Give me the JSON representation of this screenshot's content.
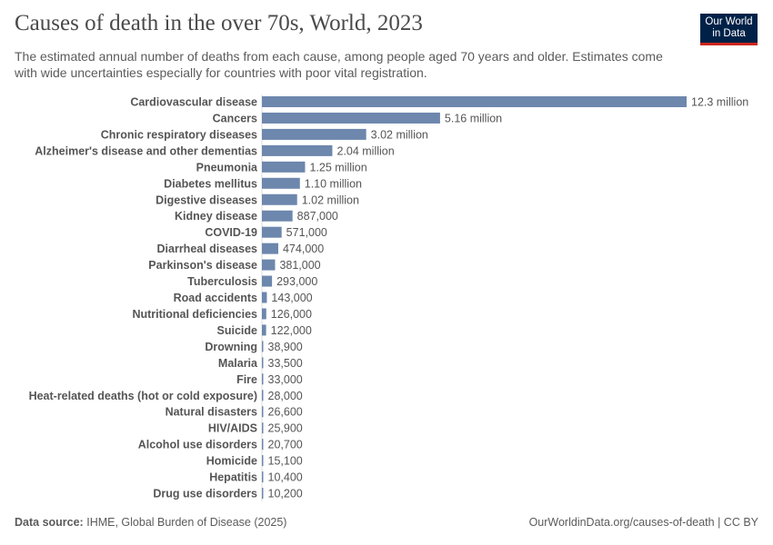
{
  "header": {
    "title": "Causes of death in the over 70s, World, 2023",
    "subtitle": "The estimated annual number of deaths from each cause, among people aged 70 years and older. Estimates come with wide uncertainties especially for countries with poor vital registration.",
    "logo": "Our World in Data"
  },
  "footer": {
    "source_label": "Data source:",
    "source": "IHME, Global Burden of Disease (2025)",
    "url": "OurWorldinData.org/causes-of-death | CC BY"
  },
  "chart_data": {
    "type": "bar",
    "orientation": "horizontal",
    "bar_color": "#6d87ad",
    "categories": [
      "Cardiovascular disease",
      "Cancers",
      "Chronic respiratory diseases",
      "Alzheimer's disease and other dementias",
      "Pneumonia",
      "Diabetes mellitus",
      "Digestive diseases",
      "Kidney disease",
      "COVID-19",
      "Diarrheal diseases",
      "Parkinson's disease",
      "Tuberculosis",
      "Road accidents",
      "Nutritional deficiencies",
      "Suicide",
      "Drowning",
      "Malaria",
      "Fire",
      "Heat-related deaths (hot or cold exposure)",
      "Natural disasters",
      "HIV/AIDS",
      "Alcohol use disorders",
      "Homicide",
      "Hepatitis",
      "Drug use disorders"
    ],
    "values": [
      12300000,
      5160000,
      3020000,
      2040000,
      1250000,
      1100000,
      1020000,
      887000,
      571000,
      474000,
      381000,
      293000,
      143000,
      126000,
      122000,
      38900,
      33500,
      33000,
      28000,
      26600,
      25900,
      20700,
      15100,
      10400,
      10200
    ],
    "labels": [
      "12.3 million",
      "5.16 million",
      "3.02 million",
      "2.04 million",
      "1.25 million",
      "1.10 million",
      "1.02 million",
      "887,000",
      "571,000",
      "474,000",
      "381,000",
      "293,000",
      "143,000",
      "126,000",
      "122,000",
      "38,900",
      "33,500",
      "33,000",
      "28,000",
      "26,600",
      "25,900",
      "20,700",
      "15,100",
      "10,400",
      "10,200"
    ]
  }
}
